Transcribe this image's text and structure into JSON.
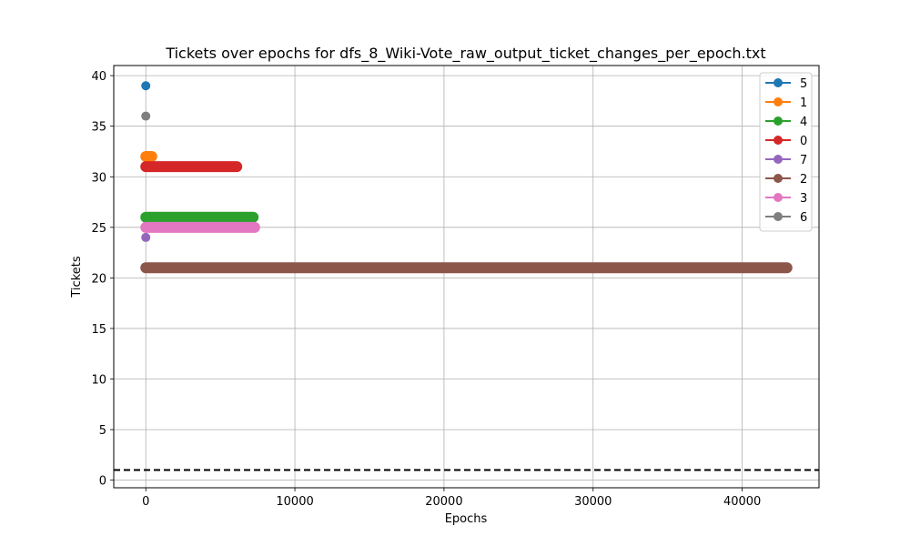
{
  "chart_data": {
    "type": "line",
    "title": "Tickets over epochs for dfs_8_Wiki-Vote_raw_output_ticket_changes_per_epoch.txt",
    "xlabel": "Epochs",
    "ylabel": "Tickets",
    "xlim": [
      -2150,
      45150
    ],
    "ylim": [
      -0.75,
      41.0
    ],
    "xticks": [
      0,
      10000,
      20000,
      30000,
      40000
    ],
    "yticks": [
      0,
      5,
      10,
      15,
      20,
      25,
      30,
      35,
      40
    ],
    "grid": true,
    "legend_position": "top-right",
    "reference_line": {
      "y": 1,
      "style": "dashed",
      "color": "#000000"
    },
    "series": [
      {
        "name": "5",
        "color": "#1f77b4",
        "points": [
          [
            0,
            39
          ]
        ]
      },
      {
        "name": "1",
        "color": "#ff7f0e",
        "points": [
          [
            0,
            32
          ],
          [
            400,
            32
          ]
        ]
      },
      {
        "name": "4",
        "color": "#2ca02c",
        "points": [
          [
            0,
            26
          ],
          [
            7200,
            26
          ]
        ]
      },
      {
        "name": "0",
        "color": "#d62728",
        "points": [
          [
            0,
            31
          ],
          [
            6100,
            31
          ]
        ]
      },
      {
        "name": "7",
        "color": "#9467bd",
        "points": [
          [
            0,
            24
          ]
        ]
      },
      {
        "name": "2",
        "color": "#8c564b",
        "points": [
          [
            0,
            21
          ],
          [
            43000,
            21
          ]
        ]
      },
      {
        "name": "3",
        "color": "#e377c2",
        "points": [
          [
            0,
            25
          ],
          [
            7300,
            25
          ]
        ]
      },
      {
        "name": "6",
        "color": "#7f7f7f",
        "points": [
          [
            0,
            36
          ]
        ]
      }
    ]
  }
}
